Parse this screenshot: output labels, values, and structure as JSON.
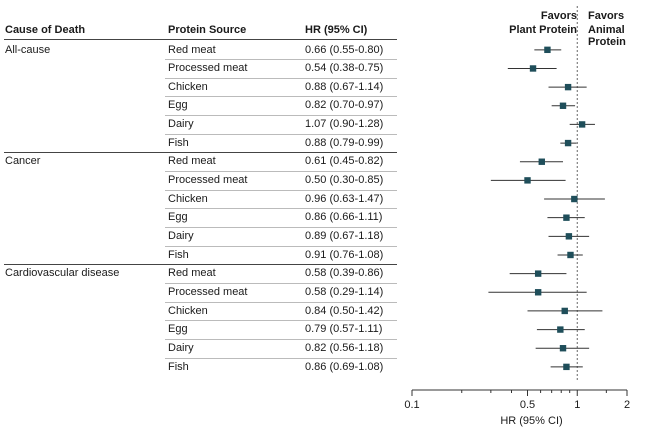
{
  "chart_data": {
    "type": "forest",
    "x_scale": "log",
    "xlim": [
      0.1,
      2
    ],
    "xticks": [
      0.1,
      0.5,
      1,
      2
    ],
    "xtick_labels": [
      "0.1",
      "0.5",
      "1",
      "2"
    ],
    "xlabel": "HR (95% CI)",
    "reference_line": 1,
    "favors_left": [
      "Favors",
      "Plant Protein"
    ],
    "favors_right": [
      "Favors",
      "Animal Protein"
    ],
    "columns": [
      "Cause of Death",
      "Protein Source",
      "HR (95% CI)"
    ],
    "groups": [
      {
        "cause": "All-cause",
        "rows": [
          {
            "source": "Red meat",
            "hr": 0.66,
            "lo": 0.55,
            "hi": 0.8,
            "label": "0.66 (0.55-0.80)"
          },
          {
            "source": "Processed meat",
            "hr": 0.54,
            "lo": 0.38,
            "hi": 0.75,
            "label": "0.54 (0.38-0.75)"
          },
          {
            "source": "Chicken",
            "hr": 0.88,
            "lo": 0.67,
            "hi": 1.14,
            "label": "0.88 (0.67-1.14)"
          },
          {
            "source": "Egg",
            "hr": 0.82,
            "lo": 0.7,
            "hi": 0.97,
            "label": "0.82 (0.70-0.97)"
          },
          {
            "source": "Dairy",
            "hr": 1.07,
            "lo": 0.9,
            "hi": 1.28,
            "label": "1.07 (0.90-1.28)"
          },
          {
            "source": "Fish",
            "hr": 0.88,
            "lo": 0.79,
            "hi": 0.99,
            "label": "0.88 (0.79-0.99)"
          }
        ]
      },
      {
        "cause": "Cancer",
        "rows": [
          {
            "source": "Red meat",
            "hr": 0.61,
            "lo": 0.45,
            "hi": 0.82,
            "label": "0.61 (0.45-0.82)"
          },
          {
            "source": "Processed meat",
            "hr": 0.5,
            "lo": 0.3,
            "hi": 0.85,
            "label": "0.50 (0.30-0.85)"
          },
          {
            "source": "Chicken",
            "hr": 0.96,
            "lo": 0.63,
            "hi": 1.47,
            "label": "0.96 (0.63-1.47)"
          },
          {
            "source": "Egg",
            "hr": 0.86,
            "lo": 0.66,
            "hi": 1.11,
            "label": "0.86 (0.66-1.11)"
          },
          {
            "source": "Dairy",
            "hr": 0.89,
            "lo": 0.67,
            "hi": 1.18,
            "label": "0.89 (0.67-1.18)"
          },
          {
            "source": "Fish",
            "hr": 0.91,
            "lo": 0.76,
            "hi": 1.08,
            "label": "0.91 (0.76-1.08)"
          }
        ]
      },
      {
        "cause": "Cardiovascular disease",
        "rows": [
          {
            "source": "Red meat",
            "hr": 0.58,
            "lo": 0.39,
            "hi": 0.86,
            "label": "0.58 (0.39-0.86)"
          },
          {
            "source": "Processed meat",
            "hr": 0.58,
            "lo": 0.29,
            "hi": 1.14,
            "label": "0.58 (0.29-1.14)"
          },
          {
            "source": "Chicken",
            "hr": 0.84,
            "lo": 0.5,
            "hi": 1.42,
            "label": "0.84 (0.50-1.42)"
          },
          {
            "source": "Egg",
            "hr": 0.79,
            "lo": 0.57,
            "hi": 1.11,
            "label": "0.79 (0.57-1.11)"
          },
          {
            "source": "Dairy",
            "hr": 0.82,
            "lo": 0.56,
            "hi": 1.18,
            "label": "0.82 (0.56-1.18)"
          },
          {
            "source": "Fish",
            "hr": 0.86,
            "lo": 0.69,
            "hi": 1.08,
            "label": "0.86 (0.69-1.08)"
          }
        ]
      }
    ]
  },
  "colors": {
    "marker": "#1f4e5a",
    "ci_line": "#333333",
    "ref_line": "#666666",
    "rule_dark": "#444444",
    "rule_light": "#bbbbbb"
  }
}
